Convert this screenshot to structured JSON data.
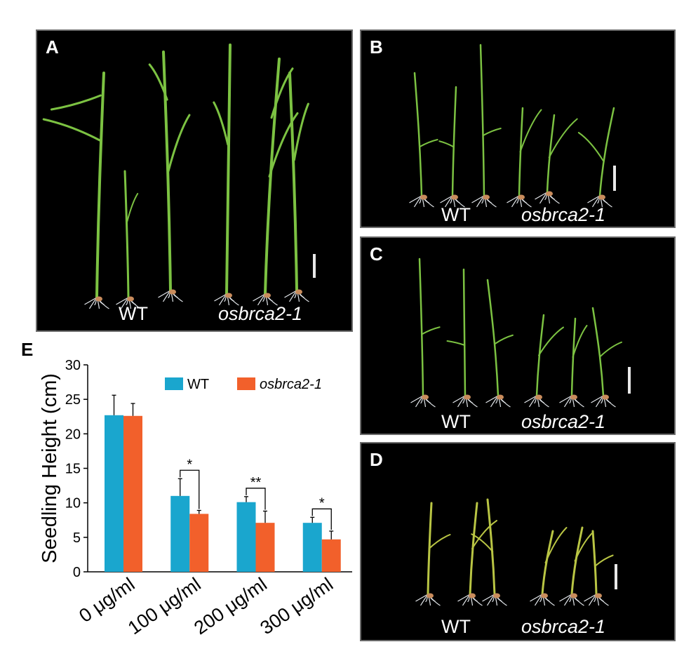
{
  "panels": {
    "a": {
      "letter": "A",
      "left_label": "WT",
      "right_label": "osbrca2-1"
    },
    "b": {
      "letter": "B",
      "left_label": "WT",
      "right_label": "osbrca2-1"
    },
    "c": {
      "letter": "C",
      "left_label": "WT",
      "right_label": "osbrca2-1"
    },
    "d": {
      "letter": "D",
      "left_label": "WT",
      "right_label": "osbrca2-1"
    }
  },
  "colors": {
    "wt": "#1AA6CE",
    "mutant": "#F2602B",
    "plant": "#7CC242",
    "plant_yellow": "#B9C544",
    "root": "#E2E6EA",
    "seed": "#C98C5C"
  },
  "chart_data": {
    "type": "bar",
    "letter": "E",
    "categories": [
      "0 μg/ml",
      "100 μg/ml",
      "200 μg/ml",
      "300 μg/ml"
    ],
    "series": [
      {
        "name": "WT",
        "values": [
          22.7,
          11.0,
          10.1,
          7.1
        ],
        "errors": [
          2.9,
          2.5,
          0.8,
          0.8
        ]
      },
      {
        "name": "osbrca2-1",
        "values": [
          22.6,
          8.4,
          7.1,
          4.7
        ],
        "errors": [
          1.8,
          0.5,
          1.7,
          1.2
        ]
      }
    ],
    "significance": [
      "",
      "*",
      "**",
      "*"
    ],
    "ylabel": "Seedling Height (cm)",
    "xlabel": "",
    "ylim": [
      0,
      30
    ],
    "yticks": [
      0,
      5,
      10,
      15,
      20,
      25,
      30
    ],
    "legend_position": "top-right",
    "grid": false
  }
}
